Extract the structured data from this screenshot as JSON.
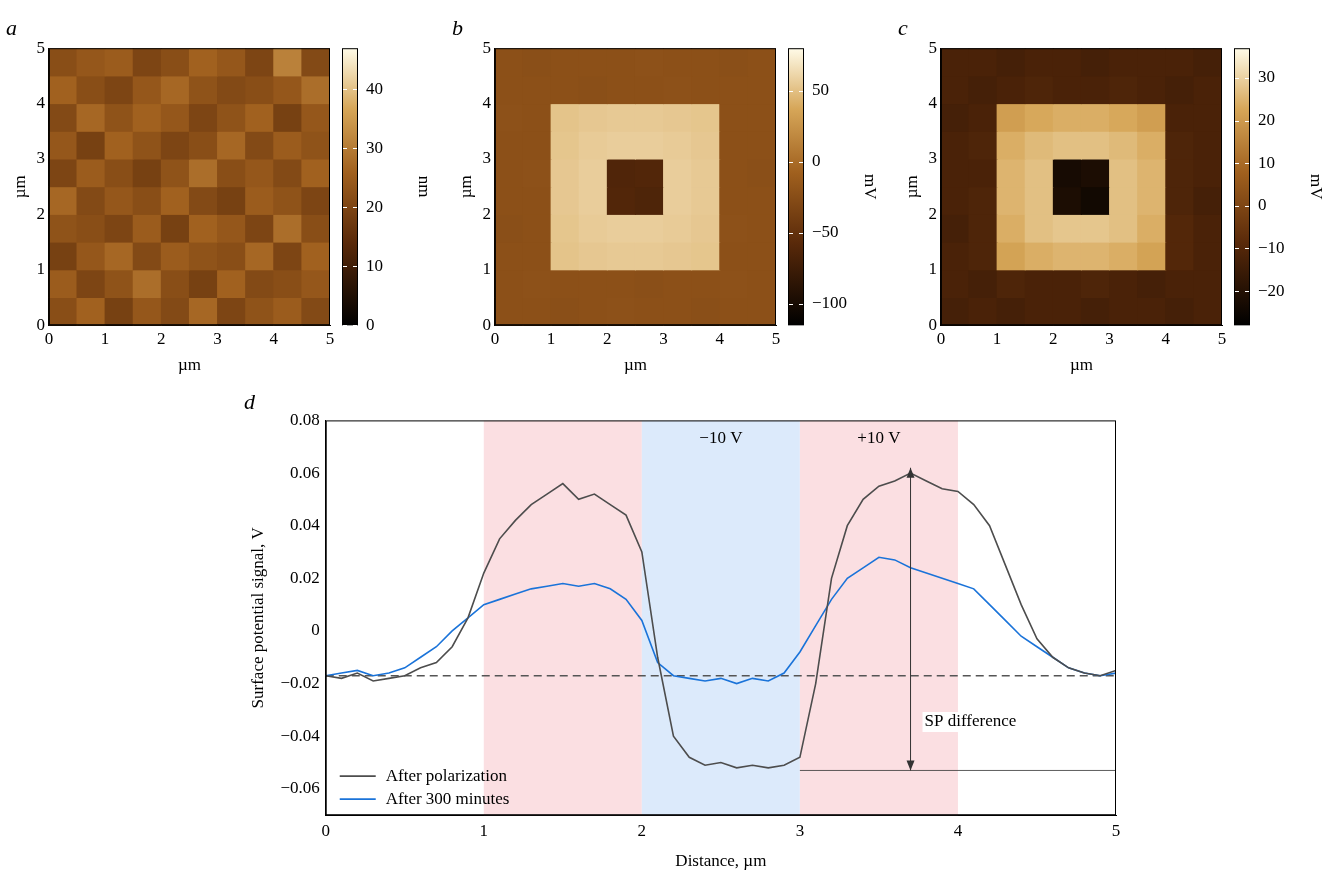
{
  "chart_data": [
    {
      "type": "heatmap",
      "title": "a",
      "x_label": "µm",
      "y_label": "µm",
      "xlim": [
        0,
        5
      ],
      "ylim": [
        0,
        5
      ],
      "xticks": [
        0,
        1,
        2,
        3,
        4,
        5
      ],
      "yticks": [
        0,
        1,
        2,
        3,
        4,
        5
      ],
      "cells": [
        [
          22,
          26,
          19,
          24,
          21,
          27,
          20,
          23,
          25,
          21
        ],
        [
          25,
          20,
          23,
          28,
          22,
          19,
          26,
          21,
          22,
          24
        ],
        [
          19,
          24,
          27,
          21,
          25,
          23,
          22,
          27,
          20,
          26
        ],
        [
          23,
          22,
          20,
          25,
          19,
          26,
          24,
          20,
          28,
          22
        ],
        [
          27,
          21,
          24,
          22,
          26,
          21,
          19,
          25,
          23,
          20
        ],
        [
          20,
          25,
          22,
          19,
          23,
          28,
          22,
          24,
          21,
          26
        ],
        [
          24,
          19,
          26,
          23,
          20,
          22,
          27,
          21,
          25,
          23
        ],
        [
          21,
          27,
          23,
          26,
          24,
          20,
          23,
          26,
          19,
          24
        ],
        [
          26,
          22,
          20,
          24,
          27,
          23,
          21,
          22,
          24,
          28
        ],
        [
          22,
          24,
          25,
          20,
          22,
          26,
          24,
          20,
          31,
          21
        ]
      ],
      "colorbar": {
        "label": "nm",
        "range": [
          0,
          47
        ],
        "ticks": [
          0,
          10,
          20,
          30,
          40
        ]
      }
    },
    {
      "type": "heatmap",
      "title": "b",
      "x_label": "µm",
      "y_label": "µm",
      "xlim": [
        0,
        5
      ],
      "ylim": [
        0,
        5
      ],
      "xticks": [
        0,
        1,
        2,
        3,
        4,
        5
      ],
      "yticks": [
        0,
        1,
        2,
        3,
        4,
        5
      ],
      "cells": [
        [
          -22,
          -22,
          -23,
          -22,
          -21,
          -22,
          -22,
          -23,
          -22,
          -22
        ],
        [
          -22,
          -21,
          -22,
          -22,
          -22,
          -23,
          -22,
          -22,
          -21,
          -22
        ],
        [
          -22,
          -22,
          52,
          54,
          55,
          55,
          54,
          53,
          -22,
          -22
        ],
        [
          -23,
          -22,
          53,
          56,
          57,
          57,
          56,
          54,
          -21,
          -22
        ],
        [
          -22,
          -22,
          54,
          57,
          -62,
          -64,
          57,
          55,
          -22,
          -22
        ],
        [
          -22,
          -21,
          54,
          57,
          -63,
          -62,
          57,
          55,
          -22,
          -23
        ],
        [
          -22,
          -22,
          53,
          56,
          57,
          57,
          56,
          54,
          -22,
          -22
        ],
        [
          -21,
          -22,
          52,
          54,
          55,
          55,
          54,
          53,
          -22,
          -22
        ],
        [
          -22,
          -22,
          -22,
          -23,
          -22,
          -22,
          -21,
          -22,
          -22,
          -22
        ],
        [
          -22,
          -23,
          -22,
          -22,
          -22,
          -21,
          -22,
          -22,
          -23,
          -22
        ]
      ],
      "colorbar": {
        "label": "mV",
        "range": [
          -115,
          80
        ],
        "ticks": [
          {
            "value": -100,
            "label": "−100"
          },
          {
            "value": -50,
            "label": "−50"
          },
          0,
          50
        ]
      }
    },
    {
      "type": "heatmap",
      "title": "c",
      "x_label": "µm",
      "y_label": "µm",
      "xlim": [
        0,
        5
      ],
      "ylim": [
        0,
        5
      ],
      "xticks": [
        0,
        1,
        2,
        3,
        4,
        5
      ],
      "yticks": [
        0,
        1,
        2,
        3,
        4,
        5
      ],
      "cells": [
        [
          -13,
          -12,
          -13,
          -12,
          -12,
          -13,
          -12,
          -12,
          -13,
          -12
        ],
        [
          -12,
          -13,
          -11,
          -12,
          -12,
          -11,
          -12,
          -13,
          -12,
          -12
        ],
        [
          -12,
          -11,
          22,
          24,
          25,
          25,
          24,
          22,
          -10,
          -12
        ],
        [
          -13,
          -11,
          24,
          27,
          28,
          28,
          27,
          24,
          -10,
          -12
        ],
        [
          -12,
          -11,
          25,
          27,
          -22,
          -24,
          27,
          25,
          -11,
          -13
        ],
        [
          -12,
          -12,
          25,
          27,
          -23,
          -22,
          27,
          25,
          -11,
          -12
        ],
        [
          -12,
          -11,
          24,
          26,
          27,
          27,
          26,
          24,
          -11,
          -12
        ],
        [
          -13,
          -12,
          21,
          23,
          24,
          24,
          23,
          21,
          -12,
          -12
        ],
        [
          -12,
          -13,
          -12,
          -11,
          -12,
          -12,
          -11,
          -12,
          -13,
          -12
        ],
        [
          -12,
          -12,
          -13,
          -12,
          -12,
          -13,
          -12,
          -12,
          -12,
          -13
        ]
      ],
      "colorbar": {
        "label": "mV",
        "range": [
          -28,
          37
        ],
        "ticks": [
          {
            "value": -20,
            "label": "−20"
          },
          {
            "value": -10,
            "label": "−10"
          },
          0,
          10,
          20,
          30
        ]
      }
    },
    {
      "type": "line",
      "title": "d",
      "x_label": "Distance, µm",
      "y_label": "Surface potential signal, V",
      "xlim": [
        0,
        5
      ],
      "ylim": [
        -0.07,
        0.08
      ],
      "xticks": [
        0,
        1,
        2,
        3,
        4,
        5
      ],
      "yticks": [
        {
          "value": -0.06,
          "label": "−0.06"
        },
        {
          "value": -0.04,
          "label": "−0.04"
        },
        {
          "value": -0.02,
          "label": "−0.02"
        },
        0,
        0.02,
        0.04,
        0.06,
        0.08
      ],
      "grid": false,
      "legend": "lower left",
      "x": [
        0,
        0.1,
        0.2,
        0.3,
        0.4,
        0.5,
        0.6,
        0.7,
        0.8,
        0.9,
        1,
        1.1,
        1.2,
        1.3,
        1.4,
        1.5,
        1.6,
        1.7,
        1.8,
        1.9,
        2,
        2.1,
        2.2,
        2.3,
        2.4,
        2.5,
        2.6,
        2.7,
        2.8,
        2.9,
        3,
        3.1,
        3.2,
        3.3,
        3.4,
        3.5,
        3.6,
        3.7,
        3.8,
        3.9,
        4,
        4.1,
        4.2,
        4.3,
        4.4,
        4.5,
        4.6,
        4.7,
        4.8,
        4.9,
        5
      ],
      "series": [
        {
          "name": "After polarization",
          "color": "#4d4d4d",
          "values": [
            -0.017,
            -0.018,
            -0.016,
            -0.019,
            -0.018,
            -0.017,
            -0.014,
            -0.012,
            -0.006,
            0.005,
            0.022,
            0.035,
            0.042,
            0.048,
            0.052,
            0.056,
            0.05,
            0.052,
            0.048,
            0.044,
            0.03,
            -0.01,
            -0.04,
            -0.048,
            -0.051,
            -0.05,
            -0.052,
            -0.051,
            -0.052,
            -0.051,
            -0.048,
            -0.02,
            0.02,
            0.04,
            0.05,
            0.055,
            0.057,
            0.06,
            0.057,
            0.054,
            0.053,
            0.048,
            0.04,
            0.025,
            0.01,
            -0.003,
            -0.01,
            -0.014,
            -0.016,
            -0.017,
            -0.015
          ]
        },
        {
          "name": "After 300 minutes",
          "color": "#1a73d9",
          "values": [
            -0.017,
            -0.016,
            -0.015,
            -0.017,
            -0.016,
            -0.014,
            -0.01,
            -0.006,
            0,
            0.005,
            0.01,
            0.012,
            0.014,
            0.016,
            0.017,
            0.018,
            0.017,
            0.018,
            0.016,
            0.012,
            0.004,
            -0.012,
            -0.017,
            -0.018,
            -0.019,
            -0.018,
            -0.02,
            -0.018,
            -0.019,
            -0.016,
            -0.008,
            0.002,
            0.012,
            0.02,
            0.024,
            0.028,
            0.027,
            0.024,
            0.022,
            0.02,
            0.018,
            0.016,
            0.01,
            0.004,
            -0.002,
            -0.006,
            -0.01,
            -0.014,
            -0.016,
            -0.017,
            -0.016
          ]
        }
      ],
      "bands": [
        {
          "from": 1,
          "to": 2,
          "color": "#fbdfe2"
        },
        {
          "from": 2,
          "to": 3,
          "color": "#dceafb",
          "label": "−10 V"
        },
        {
          "from": 3,
          "to": 4,
          "color": "#fbdfe2",
          "label": "+10 V"
        }
      ],
      "reference_line": -0.017,
      "arrow": {
        "x": 3.7,
        "from": -0.053,
        "to": 0.062,
        "label": "SP difference"
      },
      "guide_line": {
        "y": -0.053,
        "from": 3,
        "to": 5
      }
    }
  ]
}
